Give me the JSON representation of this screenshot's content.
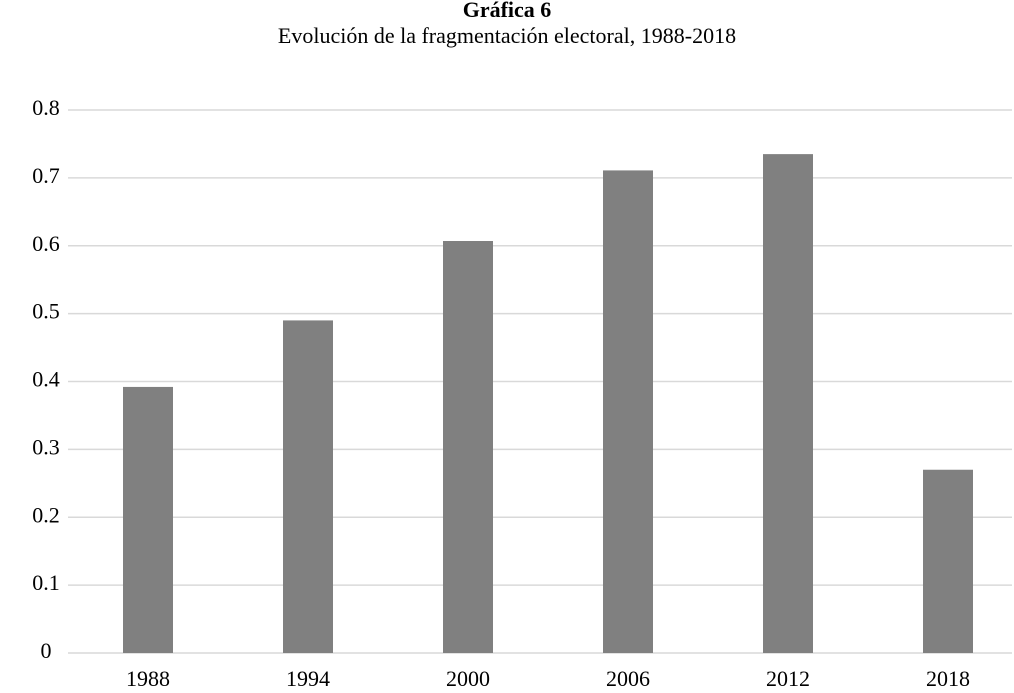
{
  "chart_data": {
    "type": "bar",
    "title": "Gráfica 6",
    "subtitle": "Evolución de la fragmentación electoral, 1988-2018",
    "categories": [
      "1988",
      "1994",
      "2000",
      "2006",
      "2012",
      "2018"
    ],
    "values": [
      0.392,
      0.49,
      0.607,
      0.711,
      0.735,
      0.27
    ],
    "color": "#808080",
    "ylim": [
      0,
      0.8
    ],
    "yticks": [
      0,
      0.1,
      0.2,
      0.3,
      0.4,
      0.5,
      0.6,
      0.7,
      0.8
    ],
    "grid": true
  }
}
